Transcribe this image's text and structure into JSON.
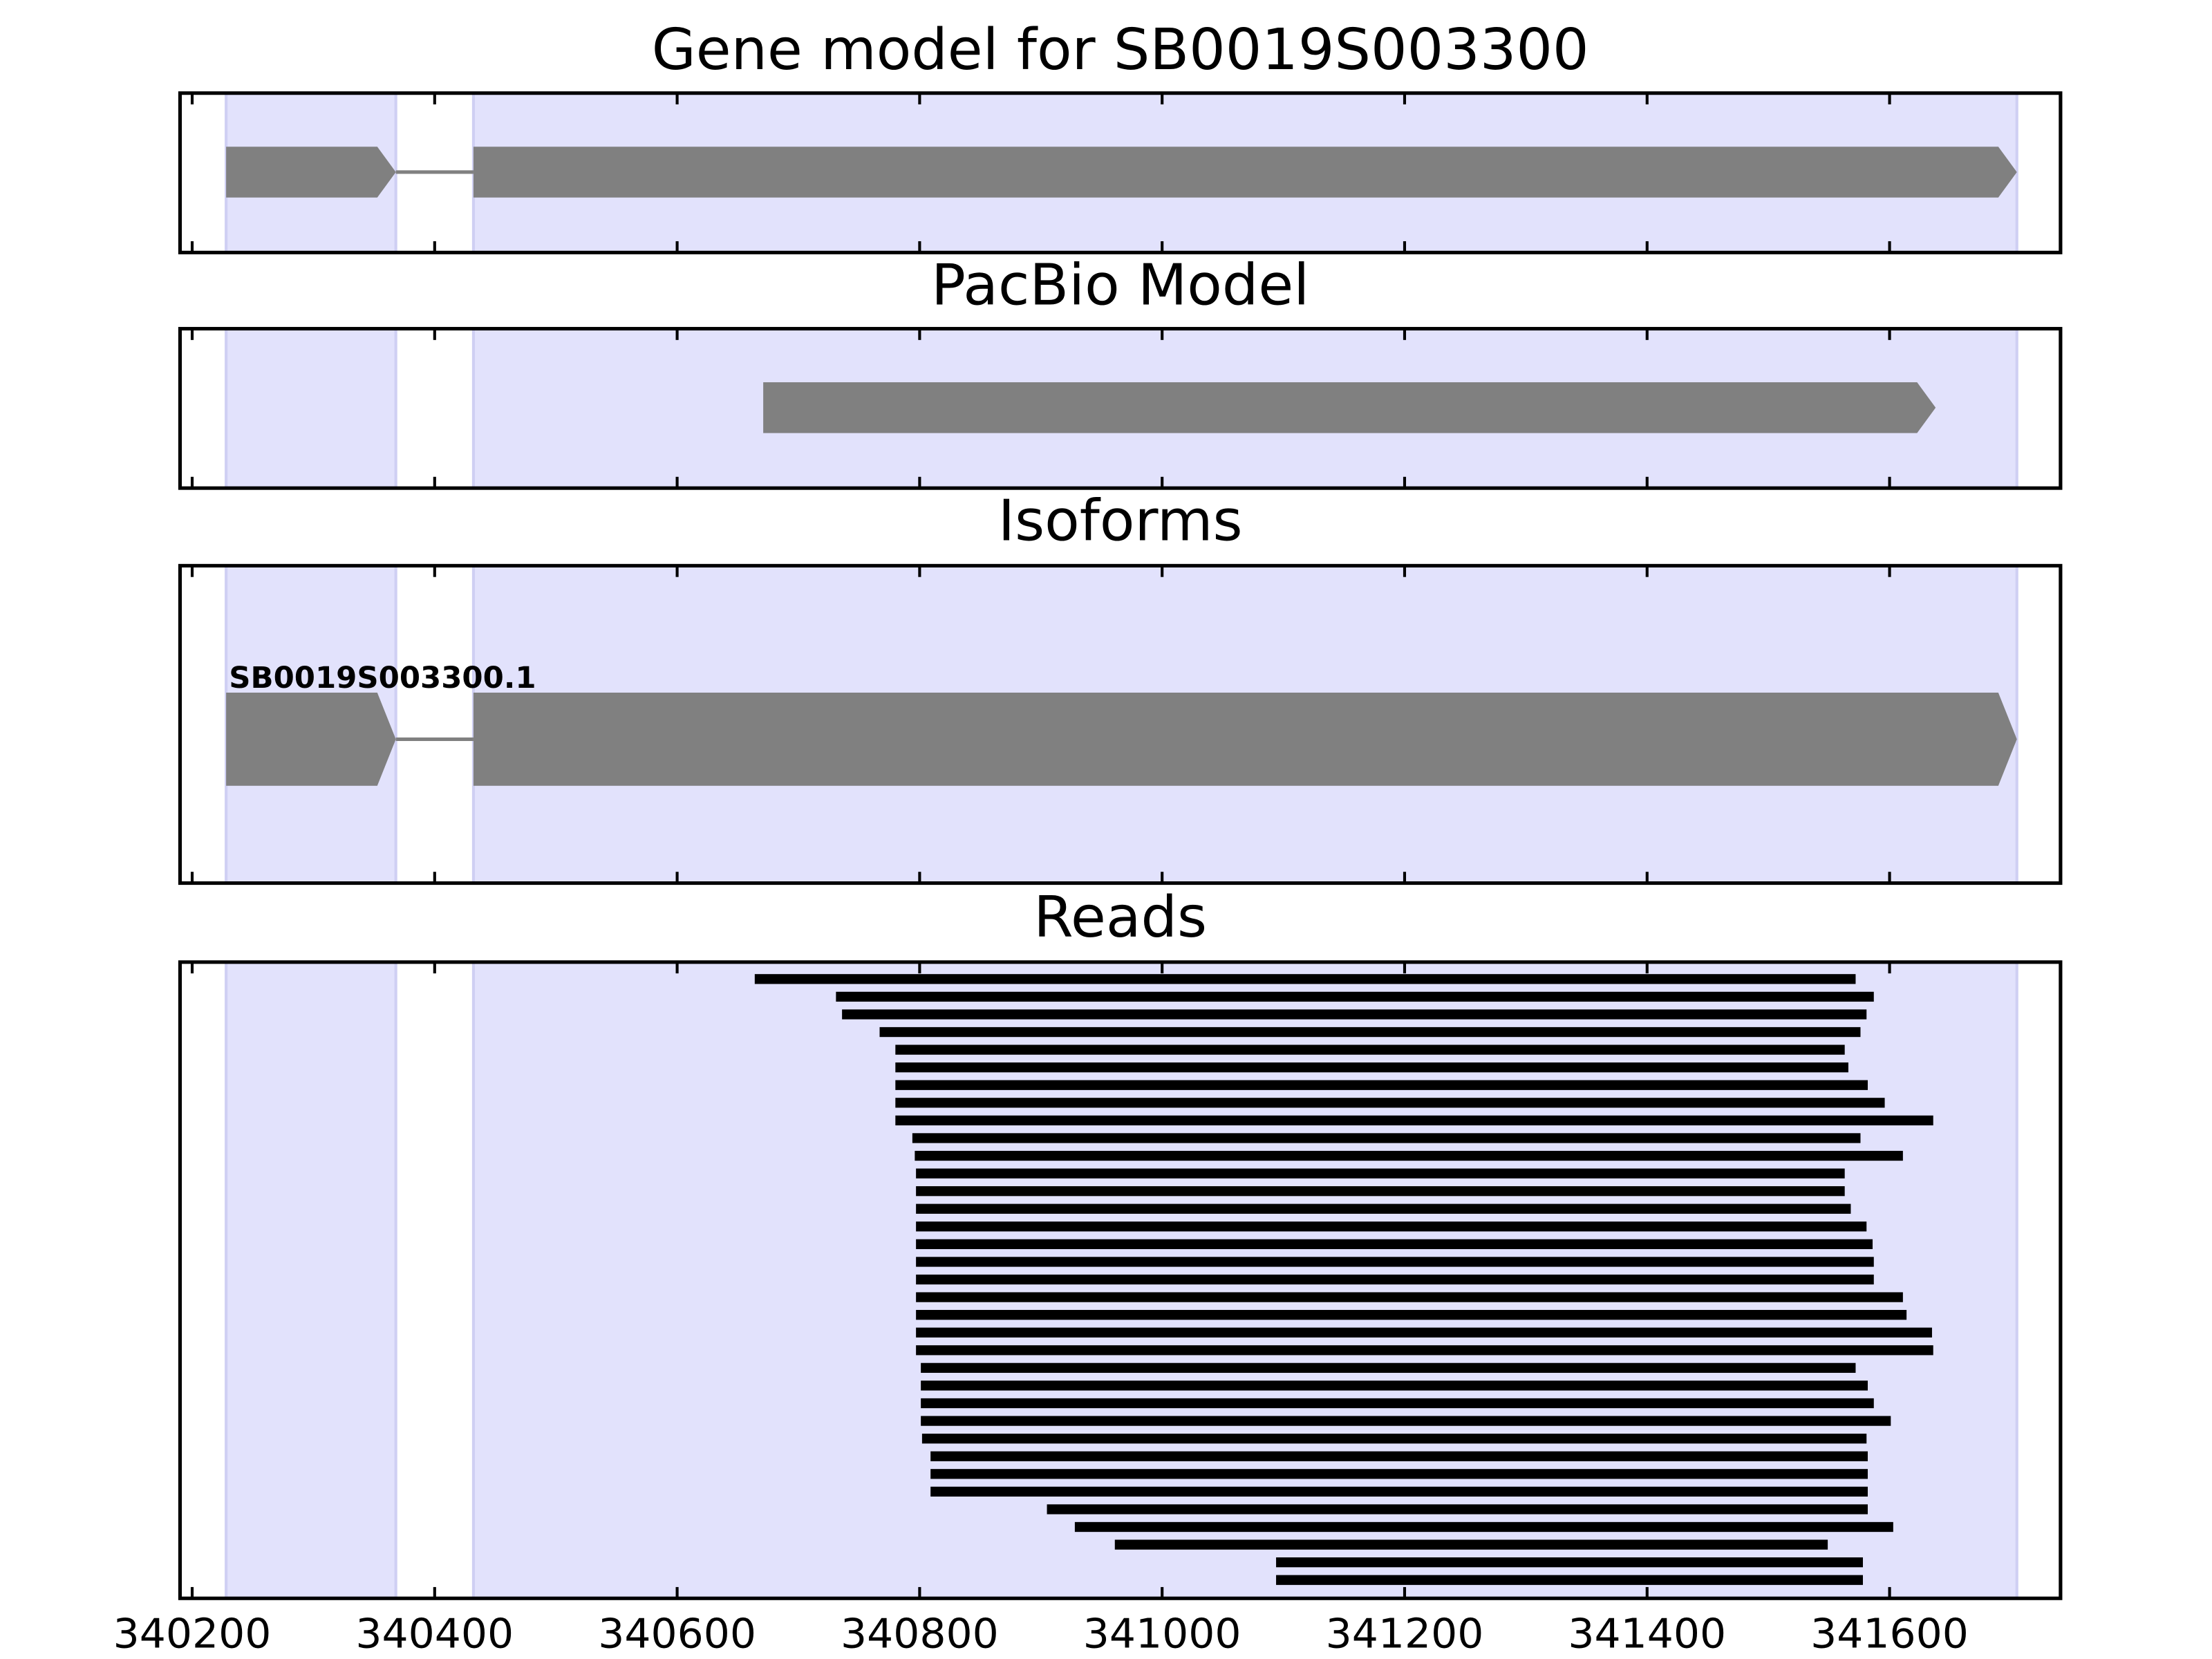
{
  "chart_data": [
    {
      "type": "gene-model",
      "title": "Gene model for SB0019S003300",
      "exons": [
        [
          340228,
          340368
        ],
        [
          340432,
          341705
        ]
      ]
    },
    {
      "type": "gene-model",
      "title": "PacBio Model",
      "exons": [
        [
          340671,
          341638
        ]
      ]
    },
    {
      "type": "gene-model",
      "title": "Isoforms",
      "label": "SB0019S003300.1",
      "exons": [
        [
          340228,
          340368
        ],
        [
          340432,
          341705
        ]
      ]
    },
    {
      "type": "read-stack",
      "title": "Reads",
      "xlim": [
        340190,
        341741
      ],
      "xticks": [
        340200,
        340400,
        340600,
        340800,
        341000,
        341200,
        341400,
        341600
      ],
      "reads": [
        [
          340664,
          341572
        ],
        [
          340731,
          341587
        ],
        [
          340736,
          341581
        ],
        [
          340767,
          341576
        ],
        [
          340780,
          341563
        ],
        [
          340780,
          341566
        ],
        [
          340780,
          341582
        ],
        [
          340780,
          341596
        ],
        [
          340780,
          341636
        ],
        [
          340794,
          341576
        ],
        [
          340796,
          341611
        ],
        [
          340797,
          341563
        ],
        [
          340797,
          341563
        ],
        [
          340797,
          341568
        ],
        [
          340797,
          341581
        ],
        [
          340797,
          341586
        ],
        [
          340797,
          341587
        ],
        [
          340797,
          341587
        ],
        [
          340797,
          341611
        ],
        [
          340797,
          341614
        ],
        [
          340797,
          341635
        ],
        [
          340797,
          341636
        ],
        [
          340801,
          341572
        ],
        [
          340801,
          341582
        ],
        [
          340801,
          341587
        ],
        [
          340801,
          341601
        ],
        [
          340802,
          341581
        ],
        [
          340809,
          341582
        ],
        [
          340809,
          341582
        ],
        [
          340809,
          341582
        ],
        [
          340905,
          341582
        ],
        [
          340928,
          341603
        ],
        [
          340961,
          341549
        ],
        [
          341094,
          341578
        ],
        [
          341094,
          341578
        ]
      ]
    }
  ]
}
